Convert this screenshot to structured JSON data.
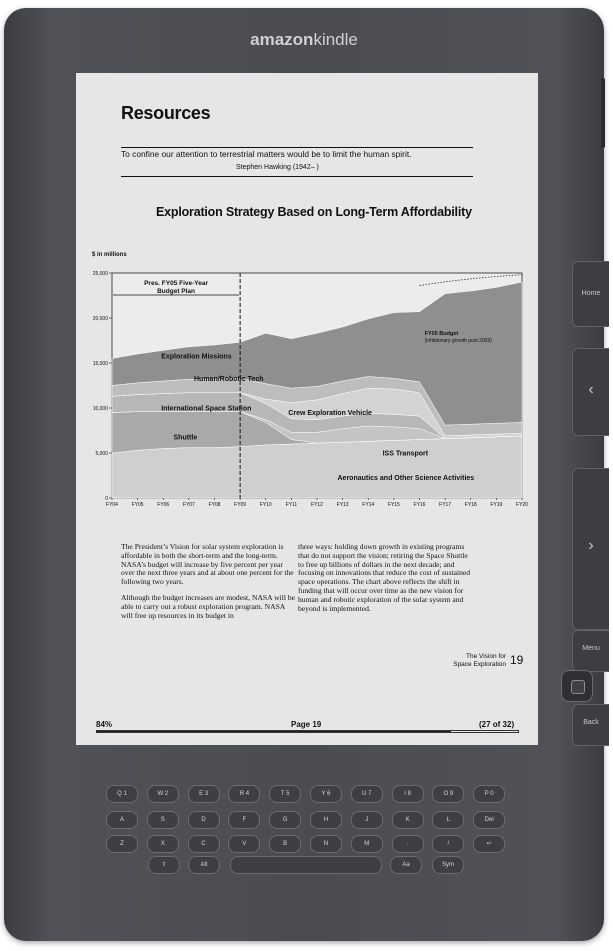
{
  "device": {
    "brand_bold": "amazon",
    "brand_rest": "kindle",
    "buttons": {
      "home": "Home",
      "prev": "‹",
      "next": "›",
      "menu": "Menu",
      "back": "Back"
    }
  },
  "page": {
    "heading": "Resources",
    "quote": "To confine our attention to terrestrial matters would be to limit the human spirit.",
    "quote_author": "Stephen Hawking (1942– )",
    "chart_title": "Exploration Strategy Based on Long-Term Affordability",
    "body_left_1": "The President’s Vision for solar system exploration is affordable in both the short-term and the long-term. NASA’s budget will increase by five percent per year over the next three years and at about one percent for the following two years.",
    "body_left_2": "Although the budget increases are modest, NASA will be able to carry out a robust exploration program. NASA will free up resources in its budget in",
    "body_right": "three ways: holding down growth in existing programs that do not support the vision; retiring the Space Shuttle to free up billions of dollars in the next decade; and focusing on innovations that reduce the cost of sustained space operations. The chart above reflects the shift in funding that will occur over time as the new vision for human and robotic exploration of the solar system and beyond is implemented.",
    "footer_title_1": "The Vision for",
    "footer_title_2": "Space Exploration",
    "footer_page": "19"
  },
  "status": {
    "percent": "84%",
    "page": "Page 19",
    "range": "(27 of 32)",
    "progress": 0.84
  },
  "chart_data": {
    "type": "area",
    "title": "Exploration Strategy Based on Long-Term Affordability",
    "ylabel": "$ in millions",
    "ylim": [
      0,
      25000
    ],
    "yticks": [
      "0",
      "5,000",
      "10,000",
      "15,000",
      "20,000",
      "25,000"
    ],
    "categories": [
      "FY04",
      "FY05",
      "FY06",
      "FY07",
      "FY08",
      "FY09",
      "FY10",
      "FY11",
      "FY12",
      "FY13",
      "FY14",
      "FY15",
      "FY16",
      "FY17",
      "FY18",
      "FY19",
      "FY20"
    ],
    "series": [
      {
        "name": "Aeronautics and Other Science Activities",
        "values": [
          5000,
          5300,
          5500,
          5600,
          5600,
          5700,
          5900,
          6000,
          6100,
          6200,
          6300,
          6400,
          6500,
          6600,
          6700,
          6800,
          6900
        ]
      },
      {
        "name": "Shuttle",
        "values": [
          4500,
          4300,
          4100,
          4000,
          4000,
          3900,
          2500,
          500,
          0,
          0,
          0,
          0,
          0,
          0,
          0,
          0,
          0
        ]
      },
      {
        "name": "ISS Transport",
        "values": [
          0,
          0,
          0,
          0,
          0,
          0,
          300,
          800,
          1200,
          1500,
          1700,
          1500,
          1200,
          0,
          0,
          0,
          0
        ]
      },
      {
        "name": "International Space Station",
        "values": [
          1800,
          1900,
          2000,
          2100,
          2100,
          2100,
          1800,
          1500,
          1400,
          1400,
          1400,
          1400,
          1400,
          0,
          0,
          0,
          0
        ]
      },
      {
        "name": "Crew Exploration Vehicle",
        "values": [
          0,
          0,
          0,
          0,
          0,
          0,
          500,
          1800,
          2200,
          2500,
          2800,
          2800,
          2600,
          300,
          300,
          300,
          300
        ]
      },
      {
        "name": "Human/Robotic Tech",
        "values": [
          1200,
          1300,
          1400,
          1500,
          1500,
          1600,
          1700,
          1600,
          1500,
          1400,
          1300,
          1200,
          1200,
          1200,
          1200,
          1200,
          1200
        ]
      },
      {
        "name": "Exploration Missions",
        "values": [
          3000,
          3200,
          3400,
          3600,
          3800,
          4000,
          5600,
          5500,
          5900,
          6000,
          6400,
          7300,
          7800,
          14600,
          14800,
          15100,
          15600
        ]
      }
    ],
    "annotations": [
      "Pres. FY05 Five-Year Budget Plan",
      "FY05 Budget (inflationary growth post 2009)"
    ]
  },
  "keyboard": {
    "rows": [
      [
        "Q 1",
        "W 2",
        "E 3",
        "R 4",
        "T 5",
        "Y 6",
        "U 7",
        "I 8",
        "O 9",
        "P 0"
      ],
      [
        "A",
        "S",
        "D",
        "F",
        "G",
        "H",
        "J",
        "K",
        "L",
        "Del"
      ],
      [
        "Z",
        "X",
        "C",
        "V",
        "B",
        "N",
        "M",
        ".",
        "/",
        "↵"
      ],
      [
        "⇧",
        "Alt",
        "",
        "Aa",
        "Sym"
      ]
    ]
  }
}
